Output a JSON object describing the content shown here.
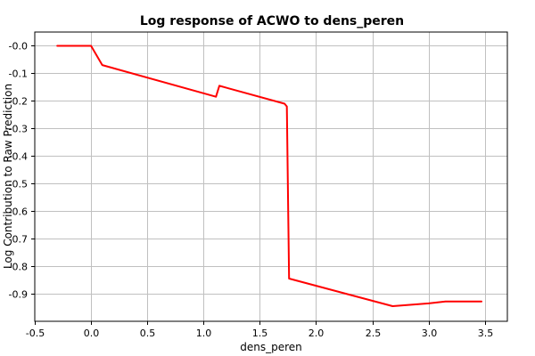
{
  "chart_data": {
    "type": "line",
    "title": "Log response of ACWO to dens_peren",
    "xlabel": "dens_peren",
    "ylabel": "Log Contribution to Raw Prediction",
    "xlim": [
      -0.5,
      3.7
    ],
    "ylim": [
      -1.0,
      0.05
    ],
    "xticks": [
      -0.5,
      0.0,
      0.5,
      1.0,
      1.5,
      2.0,
      2.5,
      3.0,
      3.5
    ],
    "xtick_labels": [
      "-0.5",
      "0.0",
      "0.5",
      "1.0",
      "1.5",
      "2.0",
      "2.5",
      "3.0",
      "3.5"
    ],
    "yticks": [
      0.0,
      -0.1,
      -0.2,
      -0.3,
      -0.4,
      -0.5,
      -0.6,
      -0.7,
      -0.8,
      -0.9
    ],
    "ytick_labels": [
      "-0.0",
      "-0.1",
      "-0.2",
      "-0.3",
      "-0.4",
      "-0.5",
      "-0.6",
      "-0.7",
      "-0.8",
      "-0.9"
    ],
    "grid": true,
    "series": [
      {
        "color": "#ff0000",
        "x": [
          -0.3,
          0.0,
          0.1,
          1.11,
          1.14,
          1.72,
          1.74,
          1.76,
          2.68,
          3.0,
          3.15,
          3.47
        ],
        "y": [
          0.0,
          0.0,
          -0.07,
          -0.185,
          -0.145,
          -0.21,
          -0.22,
          -0.845,
          -0.945,
          -0.935,
          -0.928,
          -0.928
        ]
      }
    ]
  }
}
